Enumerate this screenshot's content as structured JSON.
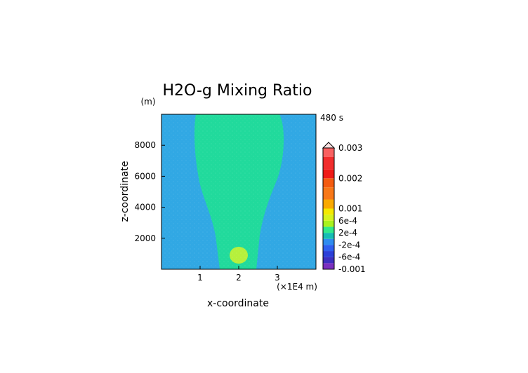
{
  "chart_data": {
    "type": "contour",
    "title": "H2O-g Mixing Ratio",
    "subtitle": "480 s",
    "xlabel": "x-coordinate",
    "ylabel": "z-coordinate",
    "x_unit_label": "(×1E4 m)",
    "y_unit_label": "(m)",
    "xlim": [
      0,
      4
    ],
    "ylim": [
      0,
      10000
    ],
    "xticks": [
      1,
      2,
      3
    ],
    "xtick_labels": [
      "1",
      "2",
      "3"
    ],
    "yticks": [
      2000,
      4000,
      6000,
      8000
    ],
    "ytick_labels": [
      "2000",
      "4000",
      "6000",
      "8000"
    ],
    "grid": false,
    "colorbar": {
      "levels": [
        -0.001,
        -0.0008,
        -0.0006,
        -0.0004,
        -0.0002,
        0.0,
        0.0002,
        0.0004,
        0.0006,
        0.0008,
        0.001,
        0.0013,
        0.0017,
        0.002,
        0.0023,
        0.0027,
        0.003
      ],
      "colors": [
        "#7b2fbf",
        "#3d2fbf",
        "#2b3fd8",
        "#2f5fef",
        "#2f8cf0",
        "#14bdb4",
        "#31e98c",
        "#a9f21e",
        "#d6f31d",
        "#f4e900",
        "#f9a900",
        "#f87818",
        "#f45b10",
        "#ef1a16",
        "#f12d2d",
        "#f96161",
        "#f8a2a2"
      ],
      "labels": [
        "0.003",
        "0.002",
        "0.001",
        "6e-4",
        "2e-4",
        "-2e-4",
        "-6e-4",
        "-0.001"
      ],
      "label_values": [
        0.003,
        0.002,
        0.001,
        0.0006,
        0.0002,
        -0.0002,
        -0.0006,
        -0.001
      ]
    },
    "fields": {
      "background": {
        "name": "ambient",
        "value_range": [
          -0.0002,
          0.0
        ]
      },
      "plume": {
        "name": "plume",
        "value_range": [
          0.0,
          0.0002
        ]
      },
      "blob": {
        "name": "blob",
        "value_range": [
          0.0002,
          0.0004
        ]
      }
    }
  }
}
